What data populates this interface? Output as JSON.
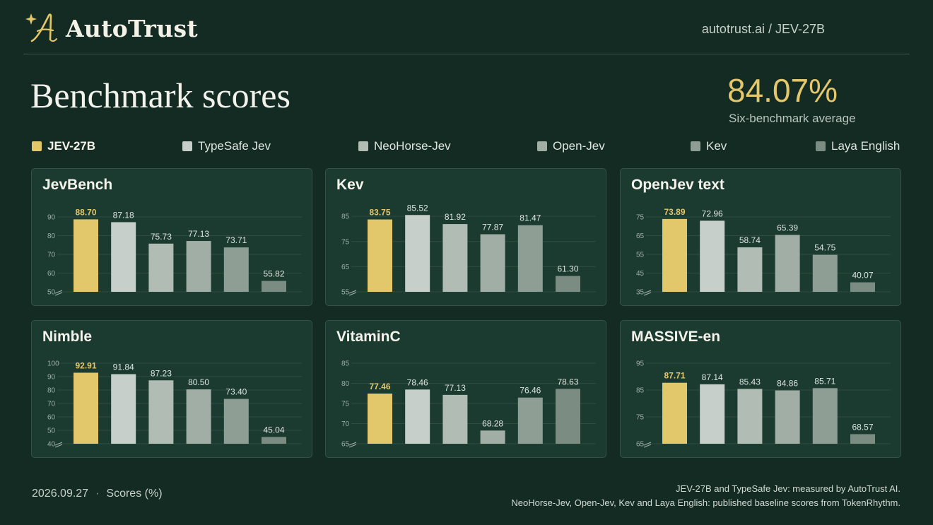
{
  "header": {
    "brand": "AutoTrust",
    "breadcrumb": "autotrust.ai / JEV-27B",
    "logo_icon": "script-a-sparkle-icon"
  },
  "page_title": "Benchmark scores",
  "kpi": {
    "value": "84.07%",
    "label": "Six-benchmark average"
  },
  "colors": {
    "background": "#132b22",
    "panel": "#1b3a30",
    "accent_gold": "#e3c76a"
  },
  "legend": [
    {
      "label": "JEV-27B",
      "color": "#e2c86b"
    },
    {
      "label": "TypeSafe Jev",
      "color": "#c6cfca"
    },
    {
      "label": "NeoHorse-Jev",
      "color": "#b1bcb5"
    },
    {
      "label": "Open-Jev",
      "color": "#a0aea6"
    },
    {
      "label": "Kev",
      "color": "#8e9e94"
    },
    {
      "label": "Laya English",
      "color": "#7b8d82"
    }
  ],
  "chart_data": [
    {
      "type": "bar",
      "title": "JevBench",
      "categories": [
        "JEV-27B",
        "TypeSafe Jev",
        "NeoHorse-Jev",
        "Open-Jev",
        "Kev",
        "Laya English"
      ],
      "values": [
        88.7,
        87.18,
        75.73,
        77.13,
        73.71,
        55.82
      ],
      "value_labels": [
        "88.70",
        "87.18",
        "75.73",
        "77.13",
        "73.71",
        "55.82"
      ],
      "ylim": [
        50,
        93
      ],
      "yticks": [
        "50",
        "60",
        "70",
        "80",
        "90"
      ],
      "axis_break": true,
      "grid": true
    },
    {
      "type": "bar",
      "title": "Kev",
      "categories": [
        "JEV-27B",
        "TypeSafe Jev",
        "NeoHorse-Jev",
        "Open-Jev",
        "Kev",
        "Laya English"
      ],
      "values": [
        83.75,
        85.52,
        81.92,
        77.87,
        81.47,
        61.3
      ],
      "value_labels": [
        "83.75",
        "85.52",
        "81.92",
        "77.87",
        "81.47",
        "61.30"
      ],
      "ylim": [
        55,
        87
      ],
      "yticks": [
        "55",
        "65",
        "75",
        "85"
      ],
      "axis_break": true,
      "grid": true
    },
    {
      "type": "bar",
      "title": "OpenJev text",
      "categories": [
        "JEV-27B",
        "TypeSafe Jev",
        "NeoHorse-Jev",
        "Open-Jev",
        "Kev",
        "Laya English"
      ],
      "values": [
        73.89,
        72.96,
        58.74,
        65.39,
        54.75,
        40.07
      ],
      "value_labels": [
        "73.89",
        "72.96",
        "58.74",
        "65.39",
        "54.75",
        "40.07"
      ],
      "ylim": [
        35,
        78
      ],
      "yticks": [
        "35",
        "45",
        "55",
        "65",
        "75"
      ],
      "axis_break": true,
      "grid": true
    },
    {
      "type": "bar",
      "title": "Nimble",
      "categories": [
        "JEV-27B",
        "TypeSafe Jev",
        "NeoHorse-Jev",
        "Open-Jev",
        "Kev",
        "Laya English"
      ],
      "values": [
        92.91,
        91.84,
        87.23,
        80.5,
        73.4,
        45.04
      ],
      "value_labels": [
        "92.91",
        "91.84",
        "87.23",
        "80.50",
        "73.40",
        "45.04"
      ],
      "ylim": [
        40,
        100
      ],
      "yticks": [
        "40",
        "50",
        "60",
        "70",
        "80",
        "90",
        "100"
      ],
      "axis_break": true,
      "grid": true
    },
    {
      "type": "bar",
      "title": "VitaminC",
      "categories": [
        "JEV-27B",
        "TypeSafe Jev",
        "NeoHorse-Jev",
        "Open-Jev",
        "Kev",
        "Laya English"
      ],
      "values": [
        77.46,
        78.46,
        77.13,
        68.28,
        76.46,
        78.63
      ],
      "value_labels": [
        "77.46",
        "78.46",
        "77.13",
        "68.28",
        "76.46",
        "78.63"
      ],
      "ylim": [
        65,
        85
      ],
      "yticks": [
        "65",
        "70",
        "75",
        "80",
        "85"
      ],
      "axis_break": true,
      "grid": true
    },
    {
      "type": "bar",
      "title": "MASSIVE-en",
      "categories": [
        "JEV-27B",
        "TypeSafe Jev",
        "NeoHorse-Jev",
        "Open-Jev",
        "Kev",
        "Laya English"
      ],
      "values": [
        87.71,
        87.14,
        85.43,
        84.86,
        85.71,
        68.57
      ],
      "value_labels": [
        "87.71",
        "87.14",
        "85.43",
        "84.86",
        "85.71",
        "68.57"
      ],
      "ylim": [
        65,
        95
      ],
      "yticks": [
        "65",
        "75",
        "85",
        "95"
      ],
      "axis_break": true,
      "grid": true
    }
  ],
  "footer": {
    "date": "2026.09.27",
    "unit": "Scores (%)",
    "separator": "·",
    "note_1": "JEV-27B and TypeSafe Jev: measured by AutoTrust AI.",
    "note_2": "NeoHorse-Jev, Open-Jev, Kev and Laya English: published baseline scores from TokenRhythm."
  }
}
